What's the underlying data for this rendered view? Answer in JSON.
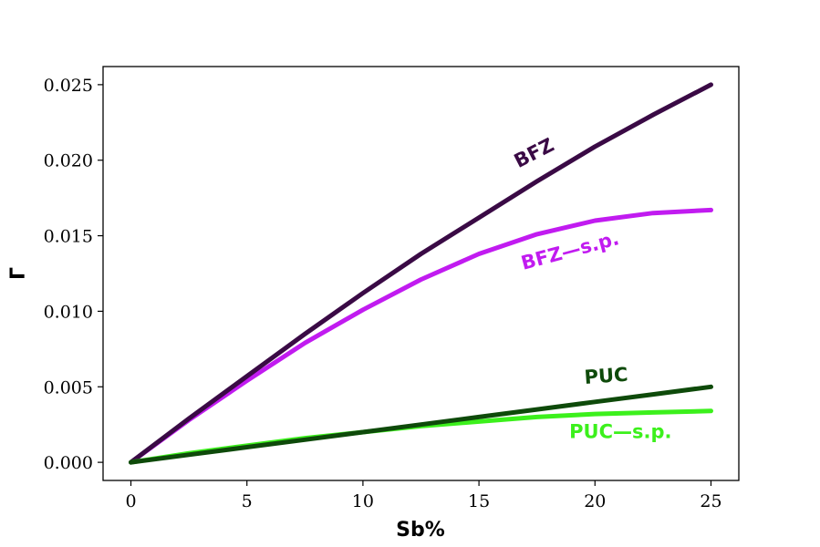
{
  "chart_data": {
    "type": "line",
    "xlabel": "Sb%",
    "ylabel": "Γ",
    "xlim": [
      -1.2,
      26.2
    ],
    "ylim": [
      -0.0012,
      0.0262
    ],
    "xticks": [
      0,
      5,
      10,
      15,
      20,
      25
    ],
    "yticks": [
      0.0,
      0.005,
      0.01,
      0.015,
      0.02,
      0.025
    ],
    "xtick_labels": [
      "0",
      "5",
      "10",
      "15",
      "20",
      "25"
    ],
    "ytick_labels": [
      "0.000",
      "0.005",
      "0.010",
      "0.015",
      "0.020",
      "0.025"
    ],
    "grid": false,
    "x": [
      0,
      2.5,
      5,
      7.5,
      10,
      12.5,
      15,
      17.5,
      20,
      22.5,
      25
    ],
    "series": [
      {
        "name": "BFZ",
        "color": "#3a0a45",
        "label_x": 17.5,
        "label_y": 0.0201,
        "label_angle": -27,
        "values": [
          0.0,
          0.0029,
          0.0057,
          0.0085,
          0.0112,
          0.0138,
          0.0162,
          0.0186,
          0.0209,
          0.023,
          0.025
        ]
      },
      {
        "name": "BFZ—s.p.",
        "color": "#c11bf0",
        "label_x": 19.0,
        "label_y": 0.0136,
        "label_angle": -15,
        "values": [
          0.0,
          0.0028,
          0.0054,
          0.0079,
          0.0101,
          0.0121,
          0.0138,
          0.0151,
          0.016,
          0.0165,
          0.0167
        ]
      },
      {
        "name": "PUC",
        "color": "#0e4a0a",
        "label_x": 20.5,
        "label_y": 0.0053,
        "label_angle": -4,
        "values": [
          0.0,
          0.0005,
          0.001,
          0.0015,
          0.002,
          0.0025,
          0.003,
          0.0035,
          0.004,
          0.0045,
          0.005
        ]
      },
      {
        "name": "PUC—s.p.",
        "color": "#3cf01c",
        "label_x": 21.1,
        "label_y": 0.0016,
        "label_angle": 0,
        "values": [
          0.0,
          0.0006,
          0.0011,
          0.0016,
          0.002,
          0.0024,
          0.0027,
          0.003,
          0.0032,
          0.0033,
          0.0034
        ]
      }
    ]
  }
}
